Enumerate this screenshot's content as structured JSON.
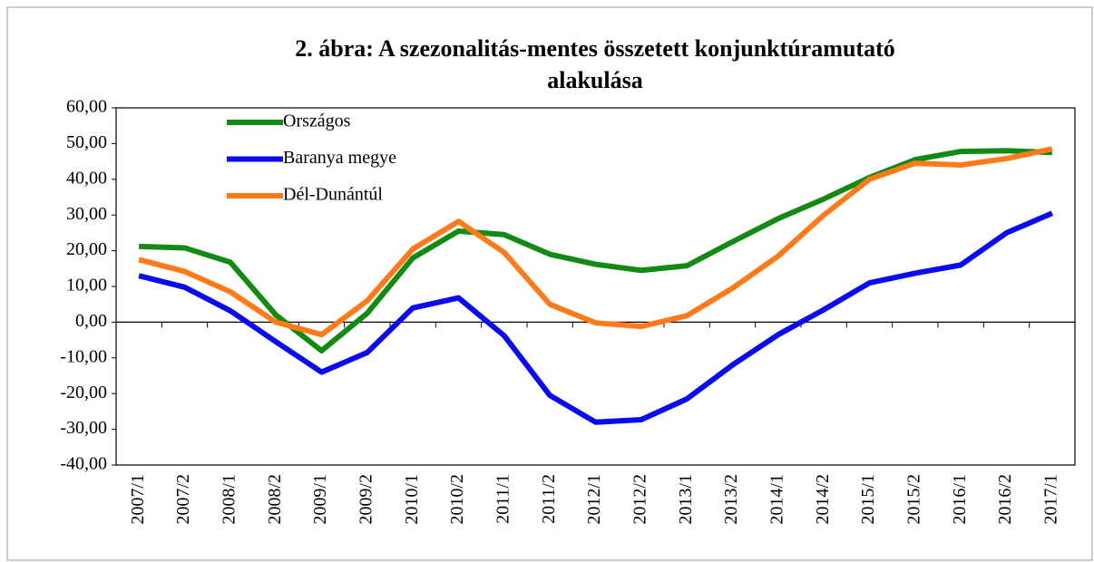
{
  "chart_data": {
    "type": "line",
    "title": [
      "2. ábra: A szezonalitás-mentes összetett konjunktúramutató",
      "alakulása"
    ],
    "categories": [
      "2007/1",
      "2007/2",
      "2008/1",
      "2008/2",
      "2009/1",
      "2009/2",
      "2010/1",
      "2010/2",
      "2011/1",
      "2011/2",
      "2012/1",
      "2012/2",
      "2013/1",
      "2013/2",
      "2014/1",
      "2014/2",
      "2015/1",
      "2015/2",
      "2016/1",
      "2016/2",
      "2017/1"
    ],
    "series": [
      {
        "name": "Országos",
        "color": "#138a13",
        "values": [
          21.2,
          20.8,
          16.8,
          2,
          -8,
          2.5,
          18,
          25.5,
          24.5,
          19,
          16.2,
          14.5,
          15.8,
          22.5,
          29,
          34.5,
          40.5,
          45.5,
          47.8,
          48,
          47.5
        ]
      },
      {
        "name": "Baranya megye",
        "color": "#0a0af0",
        "values": [
          13,
          9.8,
          3.2,
          -5.5,
          -14,
          -8.5,
          4,
          6.8,
          -3.8,
          -20.5,
          -28,
          -27.3,
          -21.5,
          -12,
          -3.5,
          3.5,
          11,
          13.7,
          16,
          25,
          30.5
        ]
      },
      {
        "name": "Dél-Dunántúl",
        "color": "#ff7a1a",
        "values": [
          17.5,
          14.2,
          8.5,
          0,
          -3.5,
          6,
          20.5,
          28.2,
          19.5,
          5,
          -0.2,
          -1.2,
          1.8,
          9.5,
          18.5,
          30,
          40,
          44.5,
          44,
          45.8,
          48.5
        ]
      }
    ],
    "ylim": [
      -40,
      60
    ],
    "yticks": [
      {
        "value": -40,
        "label": "-40,00"
      },
      {
        "value": -30,
        "label": "-30,00"
      },
      {
        "value": -20,
        "label": "-20,00"
      },
      {
        "value": -10,
        "label": "-10,00"
      },
      {
        "value": 0,
        "label": "0,00"
      },
      {
        "value": 10,
        "label": "10,00"
      },
      {
        "value": 20,
        "label": "20,00"
      },
      {
        "value": 30,
        "label": "30,00"
      },
      {
        "value": 40,
        "label": "40,00"
      },
      {
        "value": 50,
        "label": "50,00"
      },
      {
        "value": 60,
        "label": "60,00"
      }
    ],
    "legend": "top-left",
    "grid": false
  }
}
